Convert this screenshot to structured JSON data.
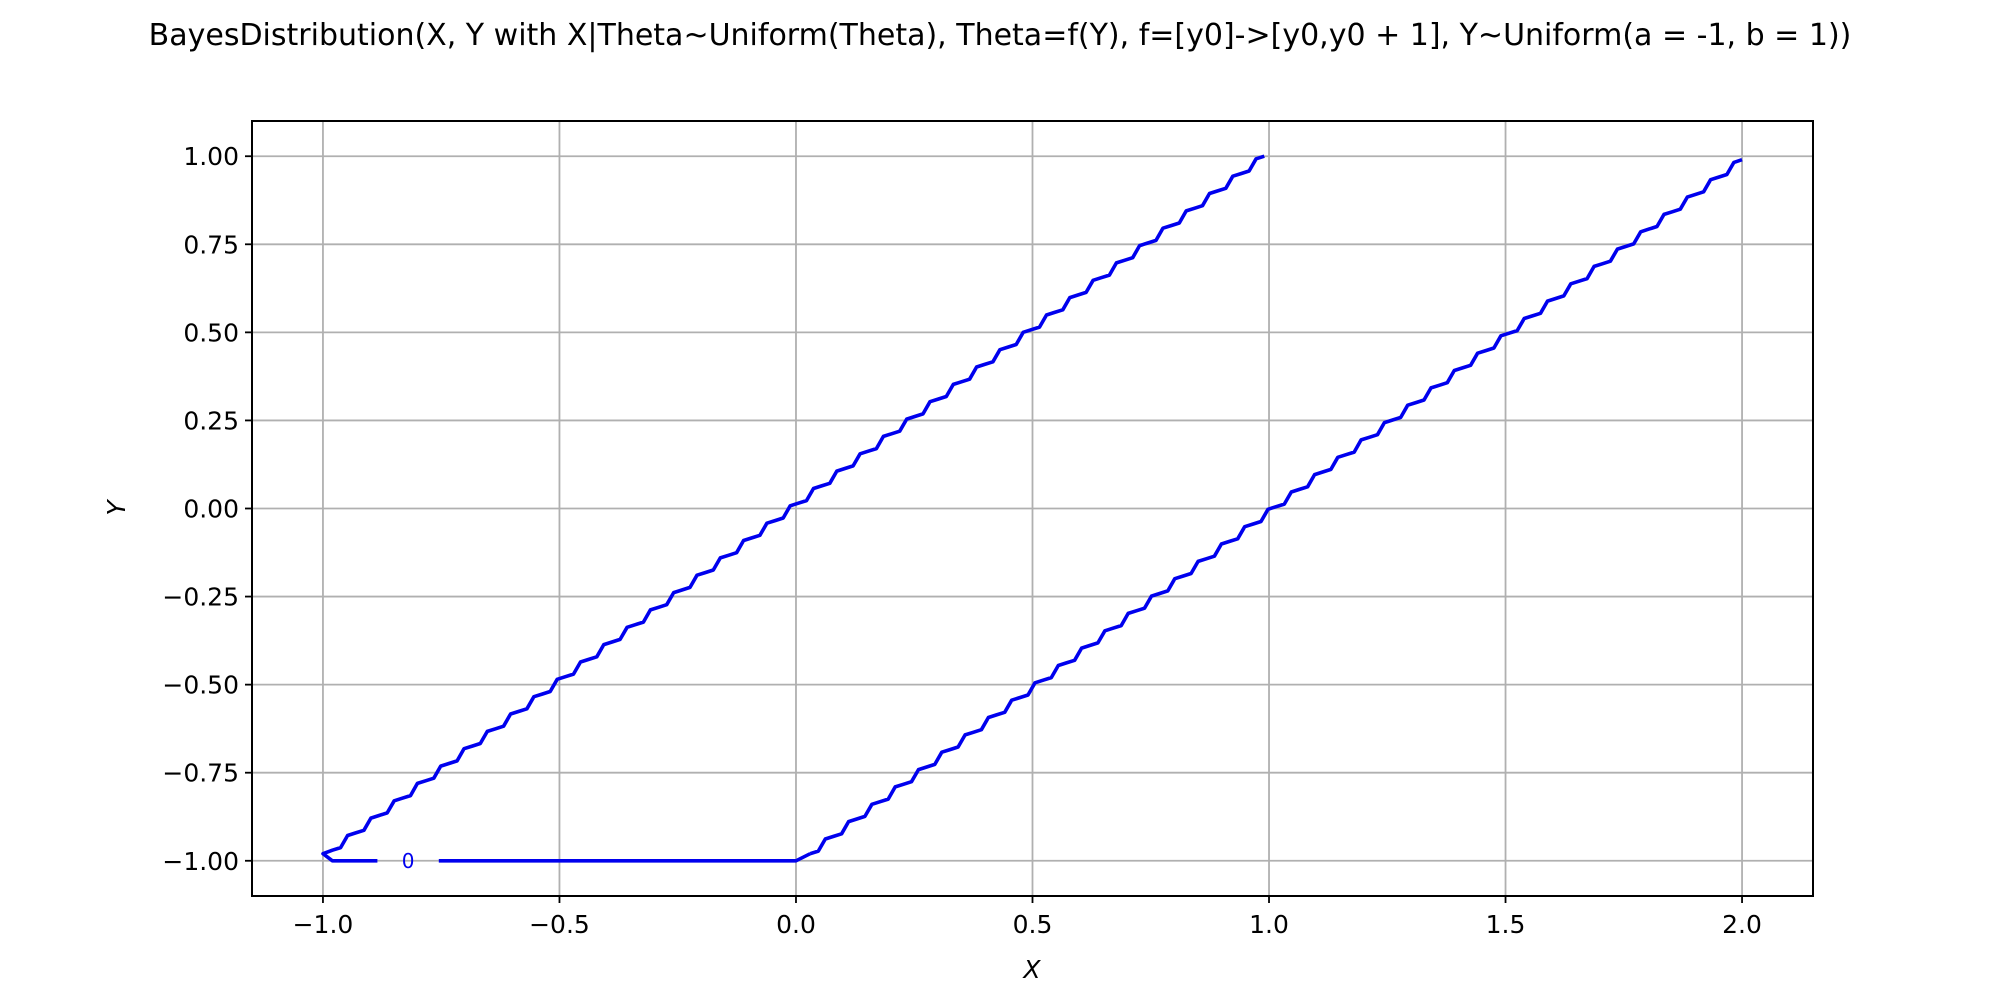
{
  "chart_data": {
    "type": "line",
    "title": "BayesDistribution(X, Y with X|Theta~Uniform(Theta), Theta=f(Y), f=[y0]->[y0,y0 + 1], Y~Uniform(a = -1, b = 1))",
    "xlabel": "X",
    "ylabel": "Y",
    "xlim": [
      -1.15,
      2.15
    ],
    "ylim": [
      -1.1,
      1.1
    ],
    "x_ticks": [
      -1.0,
      -0.5,
      0.0,
      0.5,
      1.0,
      1.5,
      2.0
    ],
    "x_tick_labels": [
      "−1.0",
      "−0.5",
      "0.0",
      "0.5",
      "1.0",
      "1.5",
      "2.0"
    ],
    "y_ticks": [
      1.0,
      0.75,
      0.5,
      0.25,
      0.0,
      -0.25,
      -0.5,
      -0.75,
      -1.0
    ],
    "y_tick_labels": [
      "1.00",
      "0.75",
      "0.50",
      "0.25",
      "0.00",
      "−0.25",
      "−0.50",
      "−0.75",
      "−1.00"
    ],
    "grid": true,
    "line_color": "#0000ee",
    "contour_level_label": "0",
    "contour_label_position": [
      -0.82,
      -1.0
    ],
    "series": [
      {
        "points": [
          [
            0.99,
            1.0
          ],
          [
            -0.98,
            -0.97
          ],
          [
            -1.0,
            -0.98
          ],
          [
            -0.98,
            -1.0
          ],
          [
            0.0,
            -1.0
          ],
          [
            0.03,
            -0.98
          ],
          [
            2.0,
            0.99
          ]
        ]
      }
    ]
  }
}
